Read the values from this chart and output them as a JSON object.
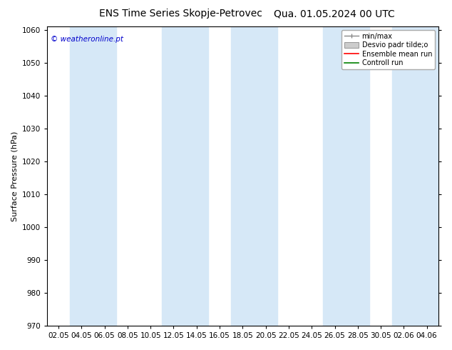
{
  "title_left": "ENS Time Series Skopje-Petrovec",
  "title_right": "Qua. 01.05.2024 00 UTC",
  "ylabel": "Surface Pressure (hPa)",
  "ylim": [
    970,
    1061
  ],
  "yticks": [
    970,
    980,
    990,
    1000,
    1010,
    1020,
    1030,
    1040,
    1050,
    1060
  ],
  "xtick_labels": [
    "02.05",
    "04.05",
    "06.05",
    "08.05",
    "10.05",
    "12.05",
    "14.05",
    "16.05",
    "18.05",
    "20.05",
    "22.05",
    "24.05",
    "26.05",
    "28.05",
    "30.05",
    "02.06",
    "04.06"
  ],
  "watermark": "© weatheronline.pt",
  "watermark_color": "#0000cc",
  "legend_entries": [
    "min/max",
    "Desvio padr tilde;o",
    "Ensemble mean run",
    "Controll run"
  ],
  "band_color": "#d6e8f7",
  "band_alpha": 1.0,
  "background_color": "#ffffff",
  "title_fontsize": 10,
  "axis_fontsize": 8,
  "tick_fontsize": 7.5,
  "band_indices": [
    1,
    2,
    5,
    6,
    8,
    9,
    12,
    15,
    16
  ]
}
